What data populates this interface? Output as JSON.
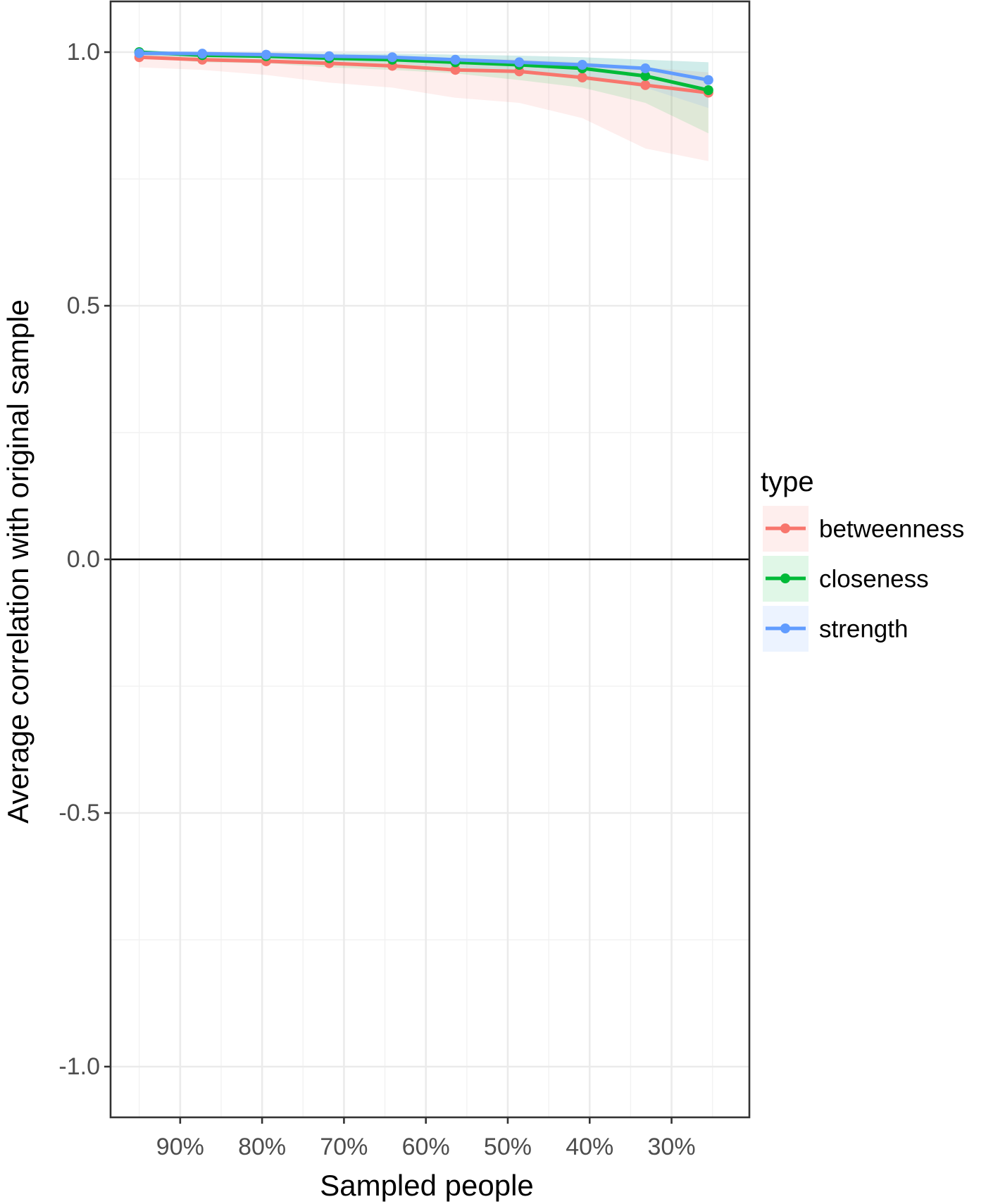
{
  "chart_data": {
    "type": "line",
    "title": "",
    "xlabel": "Sampled people",
    "ylabel": "Average correlation with original sample",
    "x_ticks": [
      "90%",
      "80%",
      "70%",
      "60%",
      "50%",
      "40%",
      "30%"
    ],
    "x_tick_values": [
      90,
      80,
      70,
      60,
      50,
      40,
      30
    ],
    "xlim": [
      98.5,
      20.5
    ],
    "y_ticks": [
      "1.0",
      "0.5",
      "0.0",
      "-0.5",
      "-1.0"
    ],
    "y_tick_values": [
      1.0,
      0.5,
      0.0,
      -0.5,
      -1.0
    ],
    "ylim": [
      -1.1,
      1.1
    ],
    "reference_line": 0,
    "grid": true,
    "x": [
      95,
      87.3,
      79.5,
      71.8,
      64.1,
      56.4,
      48.6,
      40.9,
      33.2,
      25.5
    ],
    "series": [
      {
        "name": "betweenness",
        "color": "#F8766D",
        "fill": "#FDE8E6",
        "values": [
          0.99,
          0.985,
          0.982,
          0.978,
          0.973,
          0.965,
          0.962,
          0.95,
          0.935,
          0.92
        ],
        "lower": [
          0.97,
          0.965,
          0.955,
          0.94,
          0.93,
          0.91,
          0.9,
          0.87,
          0.81,
          0.785
        ],
        "upper": [
          1.0,
          0.995,
          0.995,
          0.993,
          0.99,
          0.988,
          0.985,
          0.98,
          0.97,
          0.96
        ]
      },
      {
        "name": "closeness",
        "color": "#00BA38",
        "fill": "#E2EEE2",
        "values": [
          1.0,
          0.994,
          0.992,
          0.988,
          0.985,
          0.98,
          0.975,
          0.968,
          0.953,
          0.925
        ],
        "lower": [
          0.99,
          0.98,
          0.978,
          0.97,
          0.965,
          0.958,
          0.945,
          0.93,
          0.9,
          0.84
        ],
        "upper": [
          1.0,
          0.999,
          0.999,
          0.998,
          0.997,
          0.995,
          0.993,
          0.99,
          0.985,
          0.98
        ]
      },
      {
        "name": "strength",
        "color": "#619CFF",
        "fill": "#E8EEF8",
        "values": [
          0.998,
          0.997,
          0.995,
          0.992,
          0.99,
          0.985,
          0.98,
          0.975,
          0.968,
          0.945
        ],
        "lower": [
          0.993,
          0.99,
          0.986,
          0.982,
          0.978,
          0.97,
          0.962,
          0.95,
          0.93,
          0.89
        ],
        "upper": [
          1.0,
          1.0,
          0.999,
          0.998,
          0.997,
          0.995,
          0.993,
          0.99,
          0.985,
          0.98
        ]
      }
    ],
    "legend": {
      "title": "type",
      "placement": "right",
      "entries": [
        "betweenness",
        "closeness",
        "strength"
      ]
    }
  }
}
